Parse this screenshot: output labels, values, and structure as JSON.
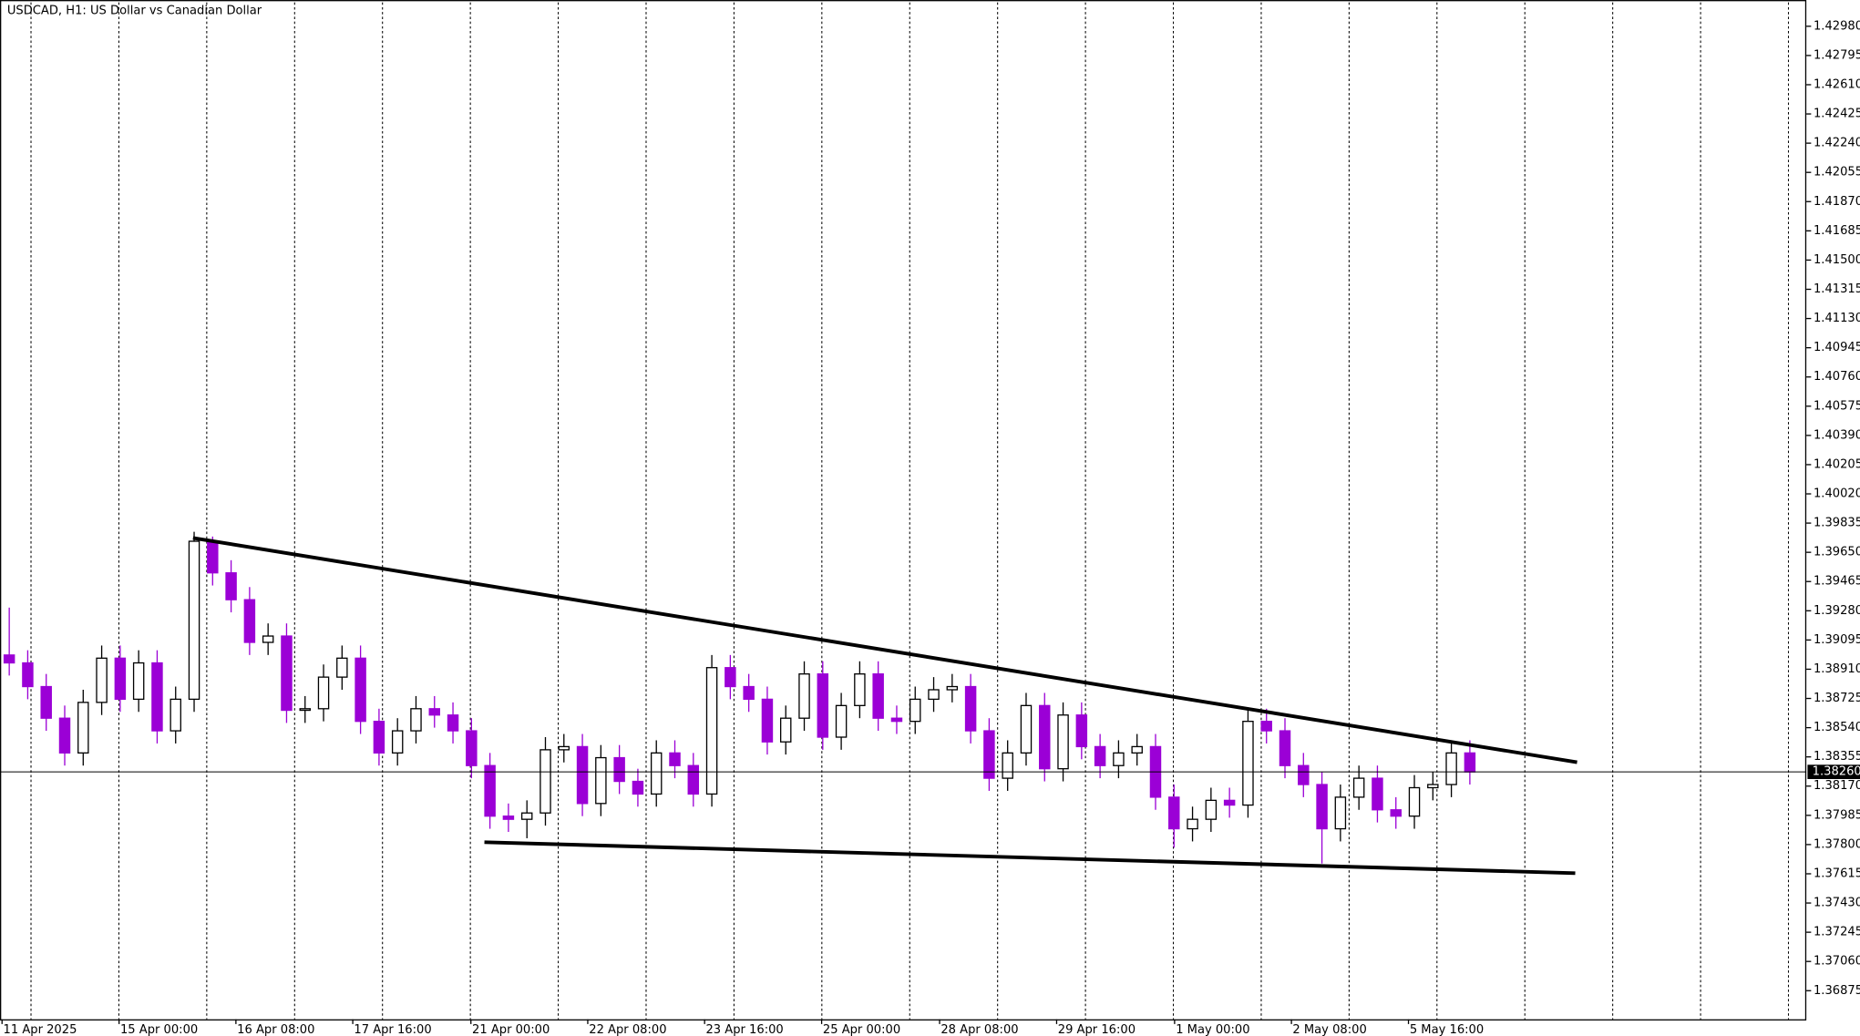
{
  "chart_data": {
    "type": "candlestick",
    "title": "USDCAD, H1:  US Dollar vs Canadian Dollar",
    "up_color": "#000000",
    "down_color": "#9b00d6",
    "xlim": [
      -0.5,
      97.2
    ],
    "ylim": [
      1.36694,
      1.43131
    ],
    "xticks": [
      {
        "value": -0.39,
        "label": "11 Apr 2025"
      },
      {
        "value": 5.94,
        "label": "15 Apr 00:00"
      },
      {
        "value": 12.26,
        "label": "16 Apr 08:00"
      },
      {
        "value": 18.58,
        "label": "17 Apr 16:00"
      },
      {
        "value": 24.97,
        "label": "21 Apr 00:00"
      },
      {
        "value": 31.29,
        "label": "22 Apr 08:00"
      },
      {
        "value": 37.61,
        "label": "23 Apr 16:00"
      },
      {
        "value": 43.94,
        "label": "25 Apr 00:00"
      },
      {
        "value": 50.32,
        "label": "28 Apr 08:00"
      },
      {
        "value": 56.65,
        "label": "29 Apr 16:00"
      },
      {
        "value": 63.03,
        "label": "1 May 00:00"
      },
      {
        "value": 69.35,
        "label": "2 May 08:00"
      },
      {
        "value": 75.68,
        "label": "5 May 16:00"
      }
    ],
    "yticks": [
      {
        "value": 1.4298,
        "label": "1.42980"
      },
      {
        "value": 1.42795,
        "label": "1.42795"
      },
      {
        "value": 1.4261,
        "label": "1.42610"
      },
      {
        "value": 1.42425,
        "label": "1.42425"
      },
      {
        "value": 1.4224,
        "label": "1.42240"
      },
      {
        "value": 1.42055,
        "label": "1.42055"
      },
      {
        "value": 1.4187,
        "label": "1.41870"
      },
      {
        "value": 1.41685,
        "label": "1.41685"
      },
      {
        "value": 1.415,
        "label": "1.41500"
      },
      {
        "value": 1.41315,
        "label": "1.41315"
      },
      {
        "value": 1.4113,
        "label": "1.41130"
      },
      {
        "value": 1.40945,
        "label": "1.40945"
      },
      {
        "value": 1.4076,
        "label": "1.40760"
      },
      {
        "value": 1.40575,
        "label": "1.40575"
      },
      {
        "value": 1.4039,
        "label": "1.40390"
      },
      {
        "value": 1.40205,
        "label": "1.40205"
      },
      {
        "value": 1.4002,
        "label": "1.40020"
      },
      {
        "value": 1.39835,
        "label": "1.39835"
      },
      {
        "value": 1.3965,
        "label": "1.39650"
      },
      {
        "value": 1.39465,
        "label": "1.39465"
      },
      {
        "value": 1.3928,
        "label": "1.39280"
      },
      {
        "value": 1.39095,
        "label": "1.39095"
      },
      {
        "value": 1.3891,
        "label": "1.38910"
      },
      {
        "value": 1.38725,
        "label": "1.38725"
      },
      {
        "value": 1.3854,
        "label": "1.38540"
      },
      {
        "value": 1.38355,
        "label": "1.38355"
      },
      {
        "value": 1.3817,
        "label": "1.38170"
      },
      {
        "value": 1.37985,
        "label": "1.37985"
      },
      {
        "value": 1.378,
        "label": "1.37800"
      },
      {
        "value": 1.37615,
        "label": "1.37615"
      },
      {
        "value": 1.3743,
        "label": "1.37430"
      },
      {
        "value": 1.37245,
        "label": "1.37245"
      },
      {
        "value": 1.3706,
        "label": "1.37060"
      },
      {
        "value": 1.36875,
        "label": "1.36875"
      }
    ],
    "current_price": {
      "value": 1.3826,
      "label": "1.38260"
    },
    "trendlines": [
      {
        "x": [
          9.94,
          84.8
        ],
        "y": [
          1.39741,
          1.38321
        ]
      },
      {
        "x": [
          25.7,
          84.7
        ],
        "y": [
          1.37815,
          1.37619
        ]
      }
    ],
    "open": [
      1.39,
      1.3895,
      1.388,
      1.386,
      1.3838,
      1.387,
      1.3898,
      1.3872,
      1.3895,
      1.3852,
      1.3872,
      1.3972,
      1.3952,
      1.3935,
      1.3908,
      1.3912,
      1.3865,
      1.3866,
      1.3886,
      1.3898,
      1.3858,
      1.3838,
      1.3852,
      1.3866,
      1.3862,
      1.3852,
      1.383,
      1.3798,
      1.3796,
      1.38,
      1.384,
      1.3842,
      1.3806,
      1.3835,
      1.382,
      1.3812,
      1.3838,
      1.383,
      1.3812,
      1.3892,
      1.388,
      1.3872,
      1.3845,
      1.386,
      1.3888,
      1.3848,
      1.3868,
      1.3888,
      1.386,
      1.3858,
      1.3872,
      1.3878,
      1.388,
      1.3852,
      1.3822,
      1.3838,
      1.3868,
      1.3828,
      1.3862,
      1.3842,
      1.383,
      1.3838,
      1.3842,
      1.381,
      1.379,
      1.3796,
      1.3808,
      1.3805,
      1.3858,
      1.3852,
      1.383,
      1.3818,
      1.379,
      1.381,
      1.3822,
      1.3802,
      1.3798,
      1.3816,
      1.3818,
      1.3838
    ],
    "high": [
      1.393,
      1.3903,
      1.3888,
      1.3868,
      1.3878,
      1.3906,
      1.3906,
      1.3903,
      1.3903,
      1.388,
      1.3978,
      1.3975,
      1.396,
      1.3943,
      1.392,
      1.392,
      1.3874,
      1.3894,
      1.3906,
      1.3906,
      1.3866,
      1.386,
      1.3874,
      1.3874,
      1.387,
      1.386,
      1.3838,
      1.3806,
      1.3808,
      1.3848,
      1.385,
      1.385,
      1.3843,
      1.3843,
      1.3828,
      1.3846,
      1.3846,
      1.3838,
      1.39,
      1.39,
      1.3888,
      1.388,
      1.3868,
      1.3896,
      1.3896,
      1.3876,
      1.3896,
      1.3896,
      1.3868,
      1.388,
      1.3886,
      1.3888,
      1.3888,
      1.386,
      1.3846,
      1.3876,
      1.3876,
      1.387,
      1.387,
      1.385,
      1.3846,
      1.385,
      1.385,
      1.3818,
      1.3804,
      1.3816,
      1.3816,
      1.3866,
      1.3866,
      1.386,
      1.3838,
      1.3826,
      1.3818,
      1.383,
      1.383,
      1.381,
      1.3824,
      1.3826,
      1.3846,
      1.3846
    ],
    "low": [
      1.3887,
      1.3872,
      1.3852,
      1.383,
      1.383,
      1.3862,
      1.3864,
      1.3864,
      1.3844,
      1.3844,
      1.3864,
      1.3944,
      1.3927,
      1.39,
      1.39,
      1.3857,
      1.3857,
      1.3858,
      1.3878,
      1.385,
      1.383,
      1.383,
      1.3844,
      1.3854,
      1.3844,
      1.3822,
      1.379,
      1.3788,
      1.3784,
      1.3792,
      1.3832,
      1.3798,
      1.3798,
      1.3812,
      1.3804,
      1.3804,
      1.3822,
      1.3804,
      1.3804,
      1.3872,
      1.3864,
      1.3837,
      1.3837,
      1.3852,
      1.384,
      1.384,
      1.386,
      1.3852,
      1.385,
      1.385,
      1.3864,
      1.387,
      1.3844,
      1.3814,
      1.3814,
      1.383,
      1.382,
      1.382,
      1.3834,
      1.3822,
      1.3822,
      1.383,
      1.3802,
      1.3778,
      1.3782,
      1.3788,
      1.3797,
      1.3797,
      1.3844,
      1.3822,
      1.381,
      1.3768,
      1.3782,
      1.3802,
      1.3794,
      1.379,
      1.379,
      1.3808,
      1.381,
      1.3818
    ],
    "close": [
      1.3895,
      1.388,
      1.386,
      1.3838,
      1.387,
      1.3898,
      1.3872,
      1.3895,
      1.3852,
      1.3872,
      1.3972,
      1.3952,
      1.3935,
      1.3908,
      1.3912,
      1.3865,
      1.3866,
      1.3886,
      1.3898,
      1.3858,
      1.3838,
      1.3852,
      1.3866,
      1.3862,
      1.3852,
      1.383,
      1.3798,
      1.3796,
      1.38,
      1.384,
      1.3842,
      1.3806,
      1.3835,
      1.382,
      1.3812,
      1.3838,
      1.383,
      1.3812,
      1.3892,
      1.388,
      1.3872,
      1.3845,
      1.386,
      1.3888,
      1.3848,
      1.3868,
      1.3888,
      1.386,
      1.3858,
      1.3872,
      1.3878,
      1.388,
      1.3852,
      1.3822,
      1.3838,
      1.3868,
      1.3828,
      1.3862,
      1.3842,
      1.383,
      1.3838,
      1.3842,
      1.381,
      1.379,
      1.3796,
      1.3808,
      1.3805,
      1.3858,
      1.3852,
      1.383,
      1.3818,
      1.379,
      1.381,
      1.3822,
      1.3802,
      1.3798,
      1.3816,
      1.3818,
      1.3838,
      1.3826
    ]
  }
}
